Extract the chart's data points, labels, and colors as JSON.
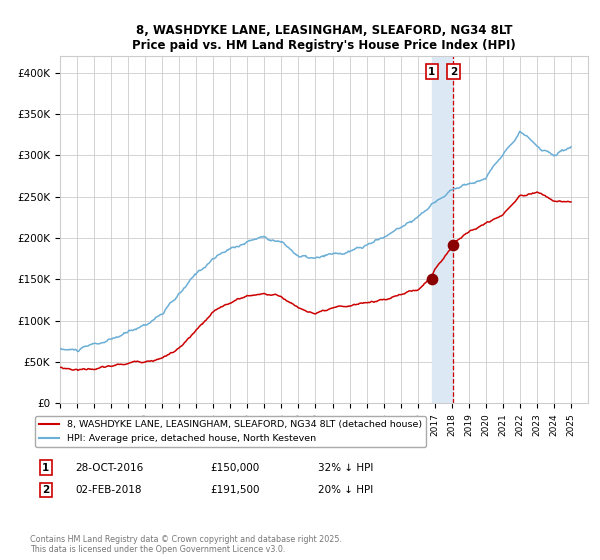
{
  "title": "8, WASHDYKE LANE, LEASINGHAM, SLEAFORD, NG34 8LT",
  "subtitle": "Price paid vs. HM Land Registry's House Price Index (HPI)",
  "ylim": [
    0,
    420000
  ],
  "yticks": [
    0,
    50000,
    100000,
    150000,
    200000,
    250000,
    300000,
    350000,
    400000
  ],
  "ytick_labels": [
    "£0",
    "£50K",
    "£100K",
    "£150K",
    "£200K",
    "£250K",
    "£300K",
    "£350K",
    "£400K"
  ],
  "hpi_color": "#6baed6",
  "property_color": "#cc0000",
  "marker_color": "#8b0000",
  "vline_color": "#cc0000",
  "vband_color": "#dce9f5",
  "grid_color": "#cccccc",
  "background_color": "#ffffff",
  "legend_label_property": "8, WASHDYKE LANE, LEASINGHAM, SLEAFORD, NG34 8LT (detached house)",
  "legend_label_hpi": "HPI: Average price, detached house, North Kesteven",
  "sale1_date": "28-OCT-2016",
  "sale1_price": "£150,000",
  "sale1_hpi": "32% ↓ HPI",
  "sale1_label": "1",
  "sale2_date": "02-FEB-2018",
  "sale2_price": "£191,500",
  "sale2_hpi": "20% ↓ HPI",
  "sale2_label": "2",
  "copyright": "Contains HM Land Registry data © Crown copyright and database right 2025.\nThis data is licensed under the Open Government Licence v3.0.",
  "sale1_year": 2016.83,
  "sale2_year": 2018.09,
  "sale1_value": 150000,
  "sale2_value": 191500,
  "xstart": 1995,
  "xend": 2026,
  "hpi_knot_years": [
    1995,
    1996,
    1997,
    1998,
    1999,
    2000,
    2001,
    2002,
    2003,
    2004,
    2005,
    2006,
    2007,
    2008,
    2009,
    2010,
    2011,
    2012,
    2013,
    2014,
    2015,
    2016,
    2017,
    2018,
    2019,
    2020,
    2021,
    2022,
    2023,
    2024,
    2025
  ],
  "hpi_knot_vals": [
    65000,
    63000,
    68000,
    72000,
    80000,
    90000,
    105000,
    125000,
    148000,
    168000,
    178000,
    188000,
    195000,
    190000,
    173000,
    168000,
    170000,
    172000,
    178000,
    188000,
    200000,
    215000,
    230000,
    248000,
    255000,
    262000,
    290000,
    325000,
    305000,
    295000,
    305000
  ],
  "prop_knot_years": [
    1995,
    1996,
    1997,
    1998,
    1999,
    2000,
    2001,
    2002,
    2003,
    2004,
    2005,
    2006,
    2007,
    2008,
    2009,
    2010,
    2011,
    2012,
    2013,
    2014,
    2015,
    2016,
    2016.83,
    2017,
    2018,
    2018.09,
    2019,
    2020,
    2021,
    2022,
    2023,
    2024,
    2025
  ],
  "prop_knot_vals": [
    43000,
    41000,
    43000,
    45000,
    48000,
    52000,
    57000,
    68000,
    88000,
    108000,
    120000,
    128000,
    132000,
    128000,
    115000,
    108000,
    110000,
    112000,
    116000,
    120000,
    126000,
    132000,
    150000,
    158000,
    185000,
    191500,
    205000,
    215000,
    225000,
    248000,
    255000,
    242000,
    240000
  ]
}
